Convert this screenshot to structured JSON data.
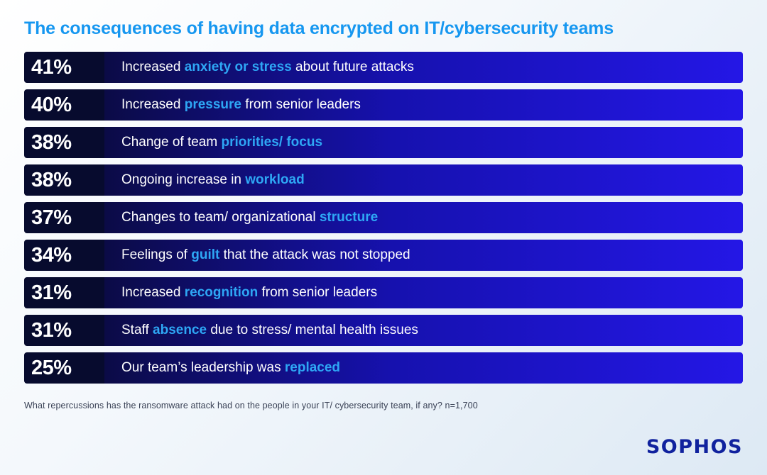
{
  "title": "The consequences of having data encrypted on IT/cybersecurity teams",
  "footnote": "What repercussions has the ransomware attack had on the people in your IT/ cybersecurity team, if any? n=1,700",
  "logo": "SOPHOS",
  "colors": {
    "title_blue": "#1697f0",
    "highlight_blue": "#2ea7f5",
    "pct_box_navy": "#070b2e",
    "bar_gradient_start": "#0b0b46",
    "bar_gradient_end": "#2417e6",
    "bar_text": "#ffffff",
    "footnote_text": "#3a4256",
    "logo_blue": "#10229e",
    "background_start": "#ffffff",
    "background_end": "#dde9f4"
  },
  "chart_data": {
    "type": "bar",
    "title": "The consequences of having data encrypted on IT/cybersecurity teams",
    "unit": "%",
    "xlabel": "",
    "ylabel": "",
    "legend": false,
    "grid": false,
    "categories": [
      "Increased anxiety or stress about future attacks",
      "Increased pressure from senior leaders",
      "Change of team priorities/ focus",
      "Ongoing increase in workload",
      "Changes to team/ organizational structure",
      "Feelings of guilt that the attack was not stopped",
      "Increased recognition from senior leaders",
      "Staff absence due to stress/ mental health issues",
      "Our team’s leadership was replaced"
    ],
    "values": [
      41,
      40,
      38,
      38,
      37,
      34,
      31,
      31,
      25
    ],
    "rows": [
      {
        "pct": "41%",
        "prefix": "Increased ",
        "highlight": "anxiety or stress",
        "suffix": " about future attacks"
      },
      {
        "pct": "40%",
        "prefix": "Increased ",
        "highlight": "pressure",
        "suffix": " from senior leaders"
      },
      {
        "pct": "38%",
        "prefix": "Change of team ",
        "highlight": "priorities/ focus",
        "suffix": ""
      },
      {
        "pct": "38%",
        "prefix": "Ongoing increase in ",
        "highlight": "workload",
        "suffix": ""
      },
      {
        "pct": "37%",
        "prefix": "Changes to team/ organizational ",
        "highlight": "structure",
        "suffix": ""
      },
      {
        "pct": "34%",
        "prefix": "Feelings of ",
        "highlight": "guilt",
        "suffix": " that the attack was not stopped"
      },
      {
        "pct": "31%",
        "prefix": "Increased ",
        "highlight": "recognition",
        "suffix": " from senior leaders"
      },
      {
        "pct": "31%",
        "prefix": "Staff ",
        "highlight": "absence",
        "suffix": " due to stress/ mental health issues"
      },
      {
        "pct": "25%",
        "prefix": "Our team’s leadership was ",
        "highlight": "replaced",
        "suffix": ""
      }
    ]
  }
}
